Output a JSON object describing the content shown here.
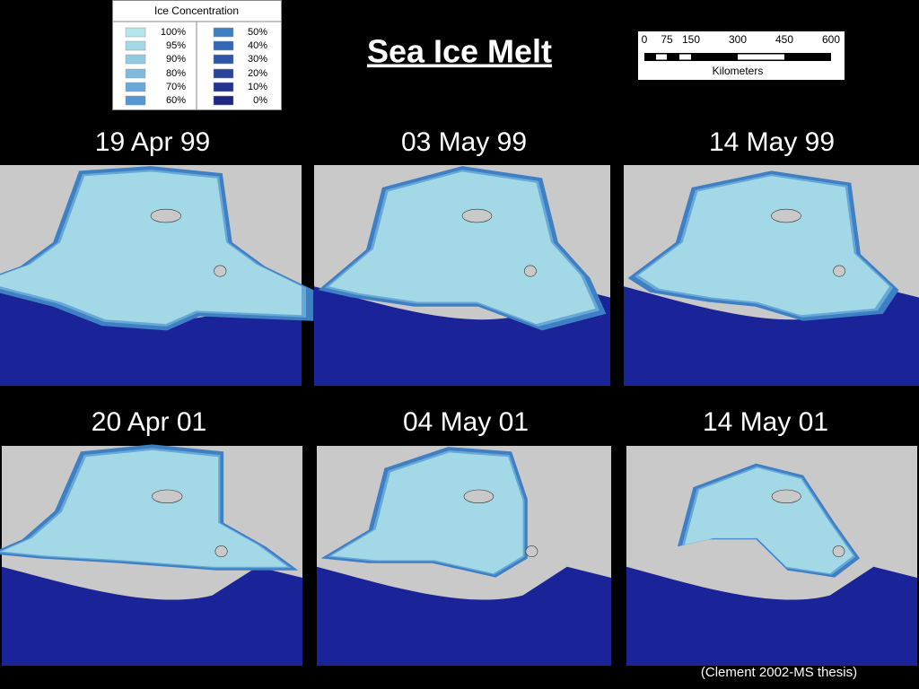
{
  "legend": {
    "title": "Ice Concentration",
    "items": [
      {
        "label": "100%",
        "color": "#b4e6ea"
      },
      {
        "label": "95%",
        "color": "#a3d8e6"
      },
      {
        "label": "90%",
        "color": "#92cae2"
      },
      {
        "label": "80%",
        "color": "#7fbadd"
      },
      {
        "label": "70%",
        "color": "#68a8d8"
      },
      {
        "label": "60%",
        "color": "#5496d2"
      },
      {
        "label": "50%",
        "color": "#3f7fc4"
      },
      {
        "label": "40%",
        "color": "#3468b6"
      },
      {
        "label": "30%",
        "color": "#2d55a8"
      },
      {
        "label": "20%",
        "color": "#28449c"
      },
      {
        "label": "10%",
        "color": "#23338f"
      },
      {
        "label": "0%",
        "color": "#1e2682"
      }
    ]
  },
  "title": "Sea Ice Melt",
  "scale": {
    "ticks": [
      "0",
      "75",
      "150",
      "300",
      "450",
      "600"
    ],
    "unit": "Kilometers"
  },
  "panels": [
    {
      "date": "19 Apr 99"
    },
    {
      "date": "03 May 99"
    },
    {
      "date": "14 May 99"
    },
    {
      "date": "20 Apr 01"
    },
    {
      "date": "04 May 01"
    },
    {
      "date": "14 May 01"
    }
  ],
  "credit": "(Clement 2002-MS thesis)"
}
